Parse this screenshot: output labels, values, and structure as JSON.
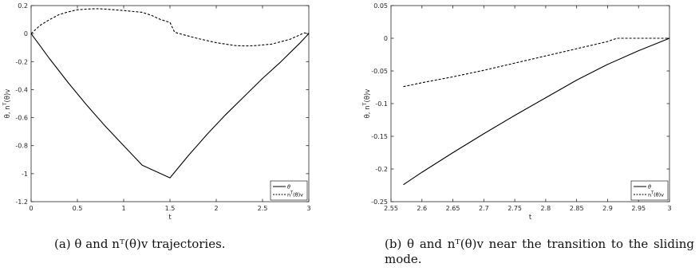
{
  "chart_data": [
    {
      "type": "line",
      "panel": "a",
      "xlabel": "t",
      "ylabel": "θ, n^T(θ)v",
      "xlim": [
        0,
        3
      ],
      "ylim": [
        -1.2,
        0.2
      ],
      "xticks": [
        0,
        0.5,
        1,
        1.5,
        2,
        2.5,
        3
      ],
      "xtick_labels": [
        "0",
        "0.5",
        "1",
        "1.5",
        "2",
        "2.5",
        "3"
      ],
      "yticks": [
        -1.2,
        -1,
        -0.8,
        -0.6,
        -0.4,
        -0.2,
        0,
        0.2
      ],
      "ytick_labels": [
        "-1.2",
        "-1",
        "-0.8",
        "-0.6",
        "-0.4",
        "-0.2",
        "0",
        "0.2"
      ],
      "grid": false,
      "legend": "bottom-right",
      "series": [
        {
          "name": "θ",
          "style": "solid",
          "x": [
            0,
            0.1,
            0.2,
            0.4,
            0.6,
            0.8,
            1.0,
            1.2,
            1.5,
            1.7,
            1.9,
            2.1,
            2.3,
            2.5,
            2.7,
            2.9,
            3.0
          ],
          "y": [
            0,
            -0.09,
            -0.18,
            -0.35,
            -0.51,
            -0.66,
            -0.8,
            -0.94,
            -1.03,
            -0.87,
            -0.72,
            -0.58,
            -0.45,
            -0.32,
            -0.2,
            -0.07,
            0
          ]
        },
        {
          "name": "n^T(θ)v",
          "style": "dashed",
          "x": [
            0,
            0.1,
            0.2,
            0.3,
            0.4,
            0.5,
            0.6,
            0.7,
            0.8,
            0.9,
            1.0,
            1.1,
            1.2,
            1.3,
            1.4,
            1.5,
            1.55,
            1.6,
            1.8,
            2.0,
            2.2,
            2.3,
            2.4,
            2.6,
            2.8,
            2.9,
            2.95,
            3.0
          ],
          "y": [
            0,
            0.06,
            0.1,
            0.135,
            0.155,
            0.17,
            0.175,
            0.178,
            0.175,
            0.17,
            0.165,
            0.158,
            0.152,
            0.13,
            0.1,
            0.08,
            0.01,
            0.0,
            -0.035,
            -0.065,
            -0.085,
            -0.088,
            -0.087,
            -0.075,
            -0.04,
            -0.01,
            0.005,
            0
          ]
        }
      ]
    },
    {
      "type": "line",
      "panel": "b",
      "xlabel": "t",
      "ylabel": "θ, n^T(θ)v",
      "xlim": [
        2.55,
        3
      ],
      "ylim": [
        -0.25,
        0.05
      ],
      "xticks": [
        2.55,
        2.6,
        2.65,
        2.7,
        2.75,
        2.8,
        2.85,
        2.9,
        2.95,
        3
      ],
      "xtick_labels": [
        "2.55",
        "2.6",
        "2.65",
        "2.7",
        "2.75",
        "2.8",
        "2.85",
        "2.9",
        "2.95",
        "3"
      ],
      "yticks": [
        -0.25,
        -0.2,
        -0.15,
        -0.1,
        -0.05,
        0,
        0.05
      ],
      "ytick_labels": [
        "-0.25",
        "-0.2",
        "-0.15",
        "-0.1",
        "-0.05",
        "0",
        "0.05"
      ],
      "grid": false,
      "legend": "bottom-right",
      "series": [
        {
          "name": "θ",
          "style": "solid",
          "x": [
            2.57,
            2.6,
            2.65,
            2.7,
            2.75,
            2.8,
            2.85,
            2.9,
            2.95,
            3.0
          ],
          "y": [
            -0.224,
            -0.205,
            -0.175,
            -0.146,
            -0.118,
            -0.091,
            -0.064,
            -0.04,
            -0.019,
            0
          ]
        },
        {
          "name": "n^T(θ)v",
          "style": "dashed",
          "x": [
            2.57,
            2.6,
            2.65,
            2.7,
            2.75,
            2.8,
            2.85,
            2.9,
            2.915,
            2.95,
            3.0
          ],
          "y": [
            -0.074,
            -0.068,
            -0.059,
            -0.049,
            -0.038,
            -0.027,
            -0.016,
            -0.005,
            0,
            0,
            0
          ]
        }
      ]
    }
  ],
  "captions": {
    "a": "(a) θ and nᵀ(θ)v trajectories.",
    "b": "(b) θ and nᵀ(θ)v near the transition to the sliding mode."
  }
}
